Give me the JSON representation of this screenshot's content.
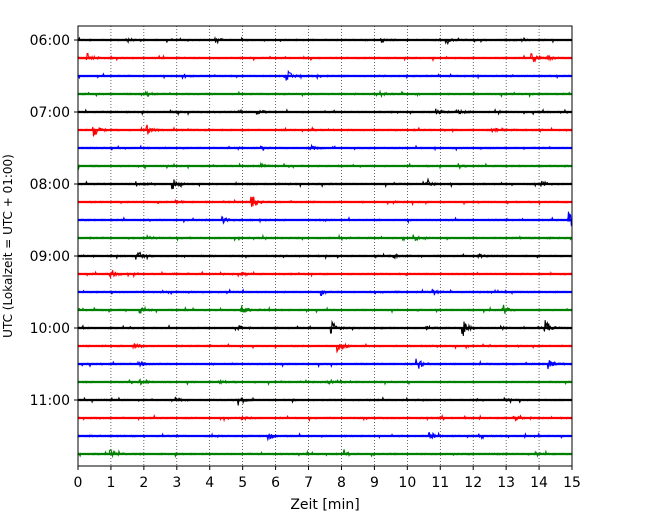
{
  "chart_data": {
    "type": "line",
    "title": "",
    "xlabel": "Zeit  [min]",
    "ylabel": "UTC (Lokalzeit = UTC + 01:00)",
    "xlim": [
      0,
      15
    ],
    "x_ticks": [
      "0",
      "1",
      "2",
      "3",
      "4",
      "5",
      "6",
      "7",
      "8",
      "9",
      "10",
      "11",
      "12",
      "13",
      "14",
      "15"
    ],
    "y_tick_labels": [
      "06:00",
      "07:00",
      "08:00",
      "09:00",
      "10:00",
      "11:00"
    ],
    "grid": "vertical dotted at each minute",
    "trace_colors": [
      "#000000",
      "#ff0000",
      "#0000ff",
      "#008000"
    ],
    "rows": [
      {
        "time": "06:00",
        "color": "#000000",
        "events": [
          [
            1.5,
            2
          ],
          [
            4.2,
            3
          ],
          [
            9.2,
            2
          ],
          [
            11.2,
            2
          ],
          [
            13.5,
            2
          ]
        ]
      },
      {
        "time": "06:15",
        "color": "#ff0000",
        "events": [
          [
            0.3,
            4
          ],
          [
            13.8,
            5
          ],
          [
            14.3,
            2
          ]
        ]
      },
      {
        "time": "06:30",
        "color": "#0000ff",
        "events": [
          [
            6.3,
            8
          ],
          [
            7.3,
            2
          ],
          [
            3.2,
            2
          ]
        ]
      },
      {
        "time": "06:45",
        "color": "#008000",
        "events": [
          [
            2.1,
            2
          ],
          [
            9.2,
            2
          ]
        ]
      },
      {
        "time": "07:00",
        "color": "#000000",
        "events": [
          [
            2.8,
            2
          ],
          [
            5.5,
            2
          ],
          [
            10.9,
            3
          ],
          [
            11.6,
            2
          ]
        ]
      },
      {
        "time": "07:15",
        "color": "#ff0000",
        "events": [
          [
            0.5,
            6
          ],
          [
            2.1,
            5
          ],
          [
            12.6,
            3
          ]
        ]
      },
      {
        "time": "07:30",
        "color": "#0000ff",
        "events": [
          [
            5.6,
            2
          ],
          [
            7.1,
            2
          ]
        ]
      },
      {
        "time": "07:45",
        "color": "#008000",
        "events": [
          [
            5.6,
            2
          ],
          [
            11.6,
            2
          ]
        ]
      },
      {
        "time": "08:00",
        "color": "#000000",
        "events": [
          [
            2.9,
            5
          ],
          [
            1.8,
            2
          ],
          [
            10.6,
            3
          ],
          [
            14.1,
            3
          ]
        ]
      },
      {
        "time": "08:15",
        "color": "#ff0000",
        "events": [
          [
            5.3,
            7
          ],
          [
            3.0,
            2
          ]
        ]
      },
      {
        "time": "08:30",
        "color": "#0000ff",
        "events": [
          [
            4.4,
            3
          ],
          [
            14.9,
            8
          ]
        ]
      },
      {
        "time": "08:45",
        "color": "#008000",
        "events": [
          [
            2.1,
            2
          ],
          [
            10.2,
            3
          ]
        ]
      },
      {
        "time": "09:00",
        "color": "#000000",
        "events": [
          [
            1.8,
            4
          ],
          [
            9.6,
            2
          ],
          [
            12.2,
            2
          ]
        ]
      },
      {
        "time": "09:15",
        "color": "#ff0000",
        "events": [
          [
            1.0,
            5
          ],
          [
            5.0,
            2
          ]
        ]
      },
      {
        "time": "09:30",
        "color": "#0000ff",
        "events": [
          [
            7.4,
            3
          ],
          [
            10.8,
            3
          ]
        ]
      },
      {
        "time": "09:45",
        "color": "#008000",
        "events": [
          [
            1.9,
            3
          ],
          [
            5.0,
            4
          ],
          [
            12.9,
            6
          ]
        ]
      },
      {
        "time": "10:00",
        "color": "#000000",
        "events": [
          [
            7.7,
            7
          ],
          [
            11.7,
            8
          ],
          [
            14.2,
            8
          ],
          [
            4.9,
            2
          ],
          [
            10.6,
            2
          ]
        ]
      },
      {
        "time": "10:15",
        "color": "#ff0000",
        "events": [
          [
            1.7,
            3
          ],
          [
            7.9,
            7
          ]
        ]
      },
      {
        "time": "10:30",
        "color": "#0000ff",
        "events": [
          [
            10.3,
            7
          ],
          [
            14.3,
            5
          ],
          [
            1.9,
            2
          ]
        ]
      },
      {
        "time": "10:45",
        "color": "#008000",
        "events": [
          [
            4.3,
            2
          ],
          [
            7.6,
            2
          ],
          [
            1.9,
            2
          ]
        ]
      },
      {
        "time": "11:00",
        "color": "#000000",
        "events": [
          [
            4.9,
            5
          ],
          [
            3.0,
            2
          ],
          [
            12.9,
            2
          ]
        ]
      },
      {
        "time": "11:15",
        "color": "#ff0000",
        "events": [
          [
            5.0,
            2
          ],
          [
            13.3,
            2
          ]
        ]
      },
      {
        "time": "11:30",
        "color": "#0000ff",
        "events": [
          [
            5.8,
            4
          ],
          [
            10.7,
            4
          ]
        ]
      },
      {
        "time": "11:45",
        "color": "#008000",
        "events": [
          [
            1.0,
            5
          ],
          [
            8.1,
            3
          ],
          [
            13.9,
            2
          ]
        ]
      }
    ]
  }
}
